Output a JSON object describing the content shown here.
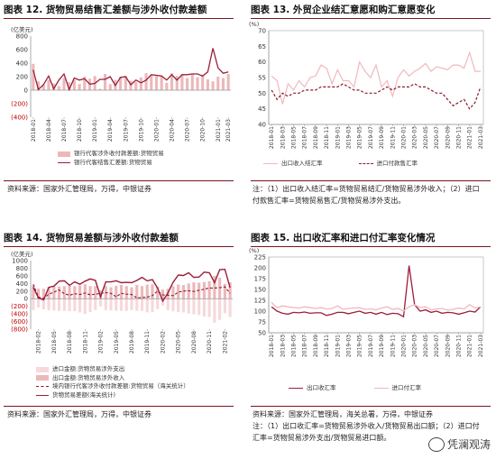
{
  "colors": {
    "bar": "#ecb8bb",
    "line": "#9c1e3a",
    "title_rule": "#7a1420",
    "pink_line": "#f0b8bf",
    "dashed": "#8b1a2c"
  },
  "fig12": {
    "title": "图表 12. 货物贸易结售汇差额与涉外收付款差额",
    "unit": "(亿美元)",
    "legend": [
      "银行代客涉外收付款差额:货物贸易",
      "银行代客结售汇差额:货物贸易"
    ],
    "source": "资料来源：国家外汇管理局，万得，中银证券"
  },
  "fig13": {
    "title": "图表 13. 外贸企业结汇意愿和购汇意愿变化",
    "unit": "(%)",
    "legend": [
      "出口收入结汇率",
      "进口付款售汇率"
    ],
    "note1": "注：（1）出口收入结汇率=货物贸易结汇/货物贸易涉外收入；（2）进口",
    "note2": "付款售汇率=货物贸易售汇/货物贸易涉外支出。"
  },
  "fig14": {
    "title": "图表 14. 货物贸易差额与涉外收付款差额",
    "unit": "(亿美元)",
    "legend": [
      "进口金额:货物贸易涉外支出",
      "出口金额:货物贸易涉外收入",
      "境内银行代客涉外收付款差额:货物贸易（海关统计）",
      "货物贸易差额(海关统计)"
    ],
    "source": "资料来源：国家外汇管理局，万得，中银证券"
  },
  "fig15": {
    "title": "图表 15. 出口收汇率和进口付汇率变化情况",
    "unit": "(%)",
    "legend": [
      "出口收汇率",
      "进口付汇率"
    ],
    "source": "资料来源：国家外汇管理局，海关总署，万得，中银证券",
    "note1": "注：（1）出口收汇率=货物贸易涉外收入/货物贸易出口额；（2）进口付",
    "note2": "汇率=货物贸易涉外支出/货物贸易进口额。"
  },
  "watermark": "凭澜观涛",
  "chart_data": [
    {
      "type": "bar",
      "x": [
        "2018-01",
        "2018-02",
        "2018-03",
        "2018-04",
        "2018-05",
        "2018-06",
        "2018-07",
        "2018-08",
        "2018-09",
        "2018-10",
        "2018-11",
        "2018-12",
        "2019-01",
        "2019-02",
        "2019-03",
        "2019-04",
        "2019-05",
        "2019-06",
        "2019-07",
        "2019-08",
        "2019-09",
        "2019-10",
        "2019-11",
        "2019-12",
        "2020-01",
        "2020-02",
        "2020-03",
        "2020-04",
        "2020-05",
        "2020-06",
        "2020-07",
        "2020-08",
        "2020-09",
        "2020-10",
        "2020-11",
        "2020-12",
        "2021-01",
        "2021-02",
        "2021-03"
      ],
      "xticks": [
        "2018-01",
        "2018-04",
        "2018-07",
        "2018-10",
        "2019-01",
        "2019-04",
        "2019-07",
        "2019-10",
        "2020-01",
        "2020-04",
        "2020-07",
        "2020-10",
        "2021-01",
        "2021-03"
      ],
      "ylim": [
        -400,
        800
      ],
      "yticks": [
        -400,
        -200,
        0,
        200,
        400,
        600,
        800
      ],
      "series": [
        {
          "name": "银行代客涉外收付款差额:货物贸易",
          "kind": "bar",
          "values": [
            390,
            130,
            80,
            150,
            100,
            60,
            180,
            120,
            150,
            90,
            200,
            170,
            210,
            20,
            240,
            90,
            150,
            200,
            210,
            140,
            120,
            190,
            250,
            220,
            210,
            200,
            110,
            250,
            210,
            230,
            180,
            240,
            190,
            230,
            160,
            130,
            200,
            180,
            240
          ]
        },
        {
          "name": "银行代客结售汇差额:货物贸易",
          "kind": "line",
          "values": [
            300,
            10,
            80,
            210,
            20,
            150,
            240,
            10,
            180,
            150,
            170,
            90,
            100,
            160,
            160,
            200,
            70,
            190,
            200,
            80,
            150,
            110,
            150,
            230,
            220,
            210,
            150,
            230,
            150,
            230,
            230,
            240,
            240,
            210,
            270,
            620,
            330,
            250,
            270
          ]
        }
      ]
    },
    {
      "type": "line",
      "x": [
        "2018-01",
        "2018-02",
        "2018-03",
        "2018-04",
        "2018-05",
        "2018-06",
        "2018-07",
        "2018-08",
        "2018-09",
        "2018-10",
        "2018-11",
        "2018-12",
        "2019-01",
        "2019-02",
        "2019-03",
        "2019-04",
        "2019-05",
        "2019-06",
        "2019-07",
        "2019-08",
        "2019-09",
        "2019-10",
        "2019-11",
        "2019-12",
        "2020-01",
        "2020-02",
        "2020-03",
        "2020-04",
        "2020-05",
        "2020-06",
        "2020-07",
        "2020-08",
        "2020-09",
        "2020-10",
        "2020-11",
        "2020-12",
        "2021-01",
        "2021-02",
        "2021-03"
      ],
      "xticks": [
        "2018-01",
        "2018-03",
        "2018-05",
        "2018-07",
        "2018-09",
        "2018-11",
        "2019-01",
        "2019-03",
        "2019-05",
        "2019-07",
        "2019-09",
        "2019-11",
        "2020-01",
        "2020-03",
        "2020-05",
        "2020-07",
        "2020-09",
        "2020-11",
        "2021-01",
        "2021-03"
      ],
      "ylim": [
        40,
        70
      ],
      "yticks": [
        40,
        45,
        50,
        55,
        60,
        65,
        70
      ],
      "series": [
        {
          "name": "出口收入结汇率",
          "style": "solid",
          "values": [
            55.5,
            54,
            46.5,
            53,
            51,
            54,
            52,
            55,
            55.5,
            59,
            58,
            53,
            57.5,
            54,
            54,
            52,
            60,
            57,
            55,
            59,
            52,
            54,
            49,
            55,
            57.5,
            55.5,
            57,
            58,
            59.5,
            57,
            58.5,
            58,
            57.5,
            59,
            59,
            58,
            63,
            57,
            57
          ]
        },
        {
          "name": "进口付款售汇率",
          "style": "dashed",
          "values": [
            51,
            48,
            50,
            49,
            50,
            50,
            51,
            51,
            51,
            52,
            52,
            52,
            52,
            53,
            52,
            51,
            51,
            50,
            50,
            50,
            51,
            52,
            51,
            52,
            52,
            52,
            53,
            52,
            52,
            51,
            50,
            50,
            48,
            46,
            47,
            48,
            45,
            47,
            52
          ]
        }
      ]
    },
    {
      "type": "bar",
      "x": [
        "2018-01",
        "2018-02",
        "2018-03",
        "2018-04",
        "2018-05",
        "2018-06",
        "2018-07",
        "2018-08",
        "2018-09",
        "2018-10",
        "2018-11",
        "2018-12",
        "2019-01",
        "2019-02",
        "2019-03",
        "2019-04",
        "2019-05",
        "2019-06",
        "2019-07",
        "2019-08",
        "2019-09",
        "2019-10",
        "2019-11",
        "2019-12",
        "2020-01",
        "2020-02",
        "2020-03",
        "2020-04",
        "2020-05",
        "2020-06",
        "2020-07",
        "2020-08",
        "2020-09",
        "2020-10",
        "2020-11",
        "2020-12",
        "2021-01",
        "2021-02",
        "2021-03"
      ],
      "xticks": [
        "2018-02",
        "2018-05",
        "2018-08",
        "2018-11",
        "2019-02",
        "2019-05",
        "2019-08",
        "2019-11",
        "2020-02",
        "2020-05",
        "2020-08",
        "2020-11",
        "2021-02"
      ],
      "ylim": [
        -800,
        1000
      ],
      "yticks": [
        -800,
        -600,
        -400,
        -200,
        0,
        200,
        400,
        600,
        800,
        1000
      ],
      "series": [
        {
          "name": "进口金额:货物贸易涉外支出",
          "kind": "bar",
          "values": [
            -300,
            -230,
            -280,
            -300,
            -310,
            -320,
            -320,
            -330,
            -330,
            -360,
            -400,
            -350,
            -300,
            -200,
            -300,
            -310,
            -320,
            -320,
            -320,
            -300,
            -320,
            -320,
            -360,
            -350,
            -270,
            -180,
            -300,
            -330,
            -350,
            -360,
            -390,
            -410,
            -430,
            -470,
            -480,
            -630,
            -560,
            -380,
            -480
          ]
        },
        {
          "name": "出口金额:货物贸易涉外收入",
          "kind": "bar",
          "values": [
            350,
            260,
            260,
            300,
            320,
            320,
            330,
            340,
            330,
            350,
            380,
            330,
            330,
            220,
            330,
            300,
            340,
            360,
            330,
            300,
            360,
            330,
            370,
            380,
            320,
            240,
            260,
            330,
            370,
            360,
            400,
            430,
            420,
            440,
            460,
            600,
            550,
            390,
            430
          ]
        },
        {
          "name": "境内银行代客涉外收付款差额:货物贸易（海关统计）",
          "kind": "line",
          "style": "dashed",
          "values": [
            380,
            40,
            10,
            120,
            170,
            230,
            130,
            90,
            130,
            110,
            150,
            100,
            120,
            140,
            160,
            140,
            50,
            140,
            120,
            110,
            20,
            30,
            40,
            80,
            200,
            100,
            90,
            80,
            170,
            200,
            210,
            190,
            220,
            250,
            280,
            280,
            290,
            310,
            140
          ]
        },
        {
          "name": "货物贸易差额(海关统计)",
          "kind": "line",
          "style": "solid",
          "values": [
            300,
            20,
            -30,
            300,
            330,
            460,
            470,
            350,
            440,
            380,
            460,
            520,
            480,
            50,
            440,
            440,
            470,
            420,
            430,
            420,
            480,
            560,
            470,
            500,
            280,
            -60,
            150,
            430,
            620,
            610,
            680,
            560,
            570,
            700,
            680,
            420,
            760,
            770,
            290
          ]
        }
      ]
    },
    {
      "type": "line",
      "x": [
        "2018-01",
        "2018-02",
        "2018-03",
        "2018-04",
        "2018-05",
        "2018-06",
        "2018-07",
        "2018-08",
        "2018-09",
        "2018-10",
        "2018-11",
        "2018-12",
        "2019-01",
        "2019-02",
        "2019-03",
        "2019-04",
        "2019-05",
        "2019-06",
        "2019-07",
        "2019-08",
        "2019-09",
        "2019-10",
        "2019-11",
        "2019-12",
        "2020-01",
        "2020-02",
        "2020-03",
        "2020-04",
        "2020-05",
        "2020-06",
        "2020-07",
        "2020-08",
        "2020-09",
        "2020-10",
        "2020-11",
        "2020-12",
        "2021-01",
        "2021-02",
        "2021-03"
      ],
      "xticks": [
        "2018-01",
        "2018-03",
        "2018-05",
        "2018-07",
        "2018-09",
        "2018-11",
        "2019-01",
        "2019-03",
        "2019-05",
        "2019-07",
        "2019-09",
        "2019-11",
        "2020-01",
        "2020-03",
        "2020-05",
        "2020-07",
        "2020-09",
        "2020-11",
        "2021-01",
        "2021-03"
      ],
      "ylim": [
        50,
        225
      ],
      "yticks": [
        50,
        75,
        100,
        125,
        150,
        175,
        200,
        225
      ],
      "series": [
        {
          "name": "出口收汇率",
          "style": "solid",
          "values": [
            110,
            100,
            95,
            93,
            97,
            96,
            98,
            95,
            96,
            96,
            90,
            93,
            97,
            97,
            94,
            97,
            100,
            95,
            97,
            93,
            97,
            92,
            95,
            94,
            87,
            205,
            115,
            100,
            103,
            97,
            100,
            95,
            97,
            96,
            93,
            96,
            100,
            98,
            110
          ]
        },
        {
          "name": "进口付汇率",
          "style": "solid",
          "values": [
            120,
            108,
            112,
            110,
            108,
            107,
            110,
            108,
            106,
            108,
            105,
            106,
            112,
            104,
            106,
            107,
            108,
            104,
            105,
            103,
            107,
            110,
            104,
            106,
            100,
            110,
            115,
            108,
            110,
            103,
            105,
            106,
            102,
            104,
            107,
            105,
            115,
            107,
            110
          ]
        }
      ]
    }
  ]
}
